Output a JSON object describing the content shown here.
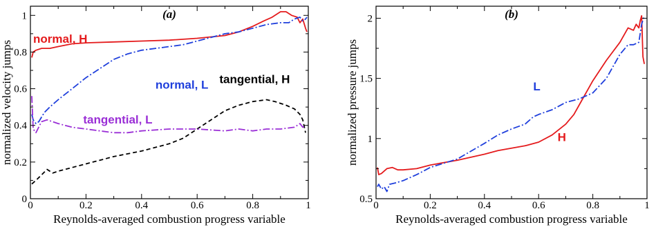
{
  "chart_data": [
    {
      "type": "line",
      "panel_label": "(a)",
      "xlabel": "Reynolds-averaged combustion progress variable",
      "ylabel": "normalized velocity jumps",
      "xlim": [
        0,
        1
      ],
      "ylim": [
        0,
        1.05
      ],
      "xticks": [
        0,
        0.2,
        0.4,
        0.6,
        0.8,
        1
      ],
      "xtick_labels": [
        "0",
        "0.2",
        "0.4",
        "0.6",
        "0.8",
        "1"
      ],
      "yticks": [
        0,
        0.2,
        0.4,
        0.6,
        0.8,
        1
      ],
      "ytick_labels": [
        "0",
        "0.2",
        "0.4",
        "0.6",
        "0.8",
        "1"
      ],
      "grid": false,
      "series": [
        {
          "name": "normal, H",
          "color": "#e41a1c",
          "dash": "solid",
          "label_at": [
            0.01,
            0.85
          ],
          "points": [
            [
              0.005,
              0.77
            ],
            [
              0.01,
              0.8
            ],
            [
              0.02,
              0.81
            ],
            [
              0.04,
              0.82
            ],
            [
              0.07,
              0.82
            ],
            [
              0.1,
              0.83
            ],
            [
              0.15,
              0.845
            ],
            [
              0.2,
              0.85
            ],
            [
              0.3,
              0.855
            ],
            [
              0.4,
              0.86
            ],
            [
              0.5,
              0.865
            ],
            [
              0.6,
              0.875
            ],
            [
              0.7,
              0.89
            ],
            [
              0.75,
              0.91
            ],
            [
              0.8,
              0.94
            ],
            [
              0.84,
              0.97
            ],
            [
              0.87,
              0.99
            ],
            [
              0.9,
              1.02
            ],
            [
              0.92,
              1.02
            ],
            [
              0.94,
              1.0
            ],
            [
              0.96,
              0.99
            ],
            [
              0.97,
              0.96
            ],
            [
              0.98,
              0.98
            ],
            [
              0.99,
              0.93
            ],
            [
              0.995,
              0.91
            ]
          ]
        },
        {
          "name": "normal, L",
          "color": "#1f3fdc",
          "dash": "10 3 2 3",
          "label_at": [
            0.45,
            0.6
          ],
          "points": [
            [
              0.005,
              0.46
            ],
            [
              0.01,
              0.43
            ],
            [
              0.02,
              0.41
            ],
            [
              0.03,
              0.42
            ],
            [
              0.05,
              0.47
            ],
            [
              0.07,
              0.5
            ],
            [
              0.1,
              0.54
            ],
            [
              0.15,
              0.6
            ],
            [
              0.2,
              0.66
            ],
            [
              0.25,
              0.71
            ],
            [
              0.3,
              0.76
            ],
            [
              0.35,
              0.79
            ],
            [
              0.4,
              0.81
            ],
            [
              0.5,
              0.83
            ],
            [
              0.55,
              0.84
            ],
            [
              0.6,
              0.86
            ],
            [
              0.65,
              0.88
            ],
            [
              0.7,
              0.9
            ],
            [
              0.75,
              0.91
            ],
            [
              0.8,
              0.93
            ],
            [
              0.85,
              0.95
            ],
            [
              0.9,
              0.96
            ],
            [
              0.93,
              0.96
            ],
            [
              0.95,
              0.98
            ],
            [
              0.97,
              0.99
            ],
            [
              0.98,
              0.97
            ],
            [
              0.99,
              0.98
            ],
            [
              0.995,
              0.99
            ]
          ]
        },
        {
          "name": "tangential, H",
          "color": "#000000",
          "dash": "6 4",
          "label_at": [
            0.68,
            0.63
          ],
          "points": [
            [
              0.005,
              0.08
            ],
            [
              0.02,
              0.1
            ],
            [
              0.04,
              0.13
            ],
            [
              0.06,
              0.16
            ],
            [
              0.08,
              0.14
            ],
            [
              0.1,
              0.15
            ],
            [
              0.15,
              0.17
            ],
            [
              0.2,
              0.19
            ],
            [
              0.3,
              0.23
            ],
            [
              0.4,
              0.26
            ],
            [
              0.5,
              0.3
            ],
            [
              0.55,
              0.33
            ],
            [
              0.6,
              0.38
            ],
            [
              0.65,
              0.43
            ],
            [
              0.7,
              0.48
            ],
            [
              0.75,
              0.51
            ],
            [
              0.8,
              0.53
            ],
            [
              0.85,
              0.54
            ],
            [
              0.88,
              0.53
            ],
            [
              0.92,
              0.51
            ],
            [
              0.95,
              0.49
            ],
            [
              0.97,
              0.46
            ],
            [
              0.98,
              0.43
            ],
            [
              0.99,
              0.36
            ]
          ]
        },
        {
          "name": "tangential, L",
          "color": "#9a2fd6",
          "dash": "10 3 2 3",
          "label_at": [
            0.19,
            0.41
          ],
          "points": [
            [
              0.005,
              0.56
            ],
            [
              0.01,
              0.38
            ],
            [
              0.02,
              0.36
            ],
            [
              0.04,
              0.42
            ],
            [
              0.06,
              0.43
            ],
            [
              0.1,
              0.41
            ],
            [
              0.15,
              0.39
            ],
            [
              0.2,
              0.38
            ],
            [
              0.25,
              0.37
            ],
            [
              0.3,
              0.36
            ],
            [
              0.35,
              0.36
            ],
            [
              0.4,
              0.37
            ],
            [
              0.5,
              0.38
            ],
            [
              0.6,
              0.38
            ],
            [
              0.7,
              0.37
            ],
            [
              0.75,
              0.38
            ],
            [
              0.8,
              0.37
            ],
            [
              0.85,
              0.38
            ],
            [
              0.9,
              0.38
            ],
            [
              0.95,
              0.39
            ],
            [
              0.97,
              0.41
            ],
            [
              0.98,
              0.39
            ],
            [
              0.99,
              0.4
            ]
          ]
        }
      ]
    },
    {
      "type": "line",
      "panel_label": "(b)",
      "xlabel": "Reynolds-averaged combustion progress variable",
      "ylabel": "normalized pressure jumps",
      "xlim": [
        0,
        1
      ],
      "ylim": [
        0.5,
        2.1
      ],
      "xticks": [
        0,
        0.2,
        0.4,
        0.6,
        0.8,
        1
      ],
      "xtick_labels": [
        "0",
        "0.2",
        "0.4",
        "0.6",
        "0.8",
        "1"
      ],
      "yticks": [
        0.5,
        1,
        1.5,
        2
      ],
      "ytick_labels": [
        "0.5",
        "1",
        "1.5",
        "2"
      ],
      "grid": false,
      "series": [
        {
          "name": "H",
          "color": "#e41a1c",
          "dash": "solid",
          "label_at": [
            0.67,
            0.98
          ],
          "points": [
            [
              0.005,
              0.76
            ],
            [
              0.01,
              0.7
            ],
            [
              0.02,
              0.71
            ],
            [
              0.04,
              0.75
            ],
            [
              0.06,
              0.76
            ],
            [
              0.08,
              0.74
            ],
            [
              0.1,
              0.74
            ],
            [
              0.15,
              0.75
            ],
            [
              0.2,
              0.78
            ],
            [
              0.3,
              0.82
            ],
            [
              0.4,
              0.87
            ],
            [
              0.45,
              0.9
            ],
            [
              0.5,
              0.92
            ],
            [
              0.55,
              0.94
            ],
            [
              0.6,
              0.97
            ],
            [
              0.65,
              1.03
            ],
            [
              0.7,
              1.12
            ],
            [
              0.73,
              1.2
            ],
            [
              0.76,
              1.32
            ],
            [
              0.8,
              1.48
            ],
            [
              0.85,
              1.65
            ],
            [
              0.9,
              1.8
            ],
            [
              0.93,
              1.92
            ],
            [
              0.95,
              1.9
            ],
            [
              0.96,
              1.95
            ],
            [
              0.97,
              1.92
            ],
            [
              0.975,
              1.98
            ],
            [
              0.98,
              2.02
            ],
            [
              0.985,
              1.68
            ],
            [
              0.99,
              1.62
            ]
          ]
        },
        {
          "name": "L",
          "color": "#1f3fdc",
          "dash": "10 3 2 3",
          "label_at": [
            0.58,
            1.4
          ],
          "points": [
            [
              0.005,
              0.6
            ],
            [
              0.01,
              0.62
            ],
            [
              0.02,
              0.58
            ],
            [
              0.03,
              0.6
            ],
            [
              0.04,
              0.56
            ],
            [
              0.05,
              0.62
            ],
            [
              0.07,
              0.63
            ],
            [
              0.1,
              0.65
            ],
            [
              0.15,
              0.7
            ],
            [
              0.2,
              0.76
            ],
            [
              0.3,
              0.83
            ],
            [
              0.4,
              0.96
            ],
            [
              0.45,
              1.03
            ],
            [
              0.5,
              1.08
            ],
            [
              0.55,
              1.12
            ],
            [
              0.58,
              1.18
            ],
            [
              0.6,
              1.2
            ],
            [
              0.65,
              1.24
            ],
            [
              0.7,
              1.3
            ],
            [
              0.75,
              1.33
            ],
            [
              0.8,
              1.38
            ],
            [
              0.85,
              1.5
            ],
            [
              0.9,
              1.7
            ],
            [
              0.93,
              1.78
            ],
            [
              0.95,
              1.78
            ],
            [
              0.97,
              1.8
            ],
            [
              0.98,
              1.95
            ],
            [
              0.99,
              2.02
            ]
          ]
        }
      ]
    }
  ]
}
